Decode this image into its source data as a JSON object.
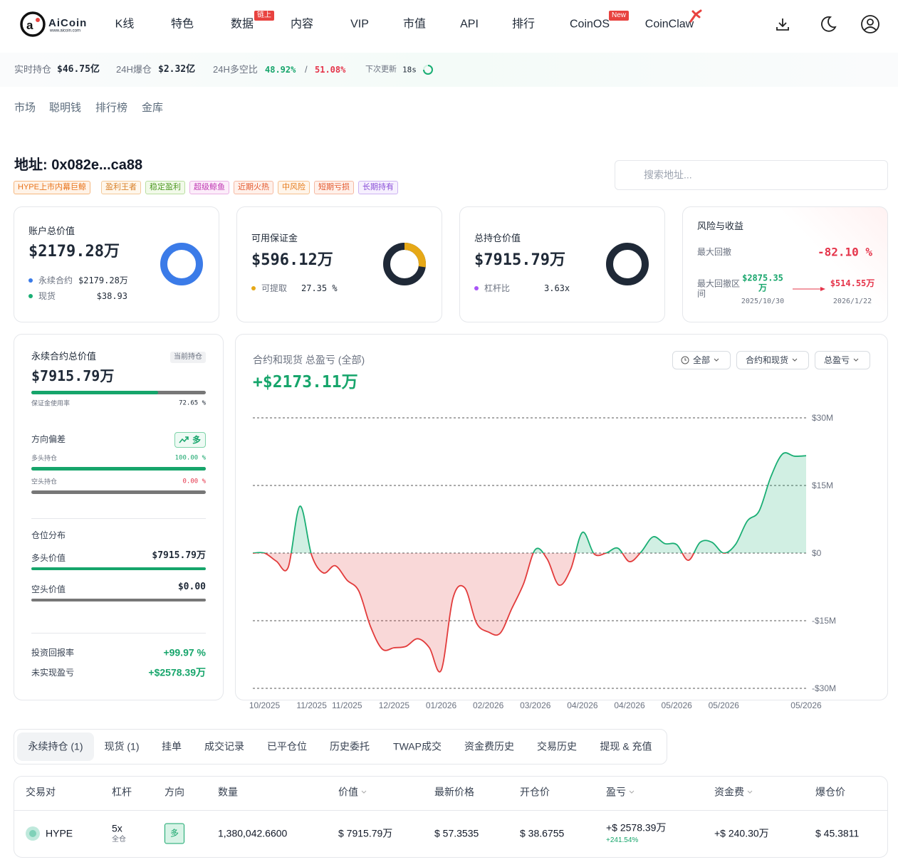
{
  "header": {
    "logo": "AiCoin",
    "logo_url": "www.aicoin.com",
    "nav": [
      {
        "label": "K线"
      },
      {
        "label": "特色"
      },
      {
        "label": "数据",
        "badge": "链上"
      },
      {
        "label": "内容"
      },
      {
        "label": "VIP"
      },
      {
        "label": "市值"
      },
      {
        "label": "API"
      },
      {
        "label": "排行"
      },
      {
        "label": "CoinOS",
        "badge": "New"
      },
      {
        "label": "CoinClaw"
      }
    ]
  },
  "stats": {
    "open_interest": {
      "label": "实时持仓",
      "value": "$46.75亿"
    },
    "liquidations": {
      "label": "24H爆仓",
      "value": "$2.32亿"
    },
    "long_short": {
      "label": "24H多空比",
      "long": "48.92%",
      "separator": "/",
      "short": "51.08%"
    },
    "next_update": {
      "label": "下次更新",
      "value": "18s"
    }
  },
  "subnav": [
    "市场",
    "聪明钱",
    "排行榜",
    "金库"
  ],
  "address": {
    "title": "地址: 0x082e...ca88",
    "tags": [
      "HYPE上市内幕巨鲸",
      "盈利王者",
      "稳定盈利",
      "超级鲸鱼",
      "近期火热",
      "中风险",
      "短期亏损",
      "长期持有"
    ],
    "search_placeholder": "搜索地址..."
  },
  "cards": [
    {
      "title": "账户总价值",
      "value": "$2179.28万",
      "items": [
        {
          "label": "永续合约",
          "value": "$2179.28万"
        },
        {
          "label": "现货",
          "value": "$38.93"
        }
      ]
    },
    {
      "title": "可用保证金",
      "value": "$596.12万",
      "items": [
        {
          "label": "可提取",
          "value": {
            "value": 27.35,
            "label": "27.35 %"
          }
        }
      ]
    },
    {
      "title": "总持仓价值",
      "value": "$7915.79万",
      "items": [
        {
          "label": "杠杆比",
          "value": "3.63x"
        }
      ]
    }
  ],
  "risk": {
    "title": "风险与收益",
    "max_drawdown": {
      "label": "最大回撤",
      "value": "-82.10 %"
    },
    "range": {
      "label": "最大回撤区间",
      "from": {
        "value": "$2875.35万",
        "date": "2025/10/30"
      },
      "to": {
        "value": "$514.55万",
        "date": "2026/1/22"
      }
    }
  },
  "left_panel": {
    "title": "永续合约总价值",
    "badge": "当前持仓",
    "value": "$7915.79万",
    "margin_usage": {
      "label": "保证金使用率",
      "pct": {
        "value": 72.65,
        "label": "72.65 %"
      }
    },
    "bias": {
      "title": "方向偏差",
      "badge": "多",
      "long": {
        "label": "多头持仓",
        "pct": {
          "value": 100,
          "label": "100.00 %"
        }
      },
      "short": {
        "label": "空头持仓",
        "pct": {
          "value": 0,
          "label": "0.00 %"
        }
      }
    },
    "distribution": {
      "title": "仓位分布",
      "long": {
        "label": "多头价值",
        "value": "$7915.79万"
      },
      "short": {
        "label": "空头价值",
        "value": "$0.00"
      }
    },
    "roi": {
      "label": "投资回报率",
      "value": "+99.97 %"
    },
    "upnl": {
      "label": "未实现盈亏",
      "value": "+$2578.39万"
    }
  },
  "chart_data": {
    "type": "area",
    "title": "合约和现货 总盈亏 (全部)",
    "headline": "+$2173.11万",
    "controls": [
      "全部",
      "合约和现货",
      "总盈亏"
    ],
    "color": "#1aae74",
    "negative_color": "#e23b3b",
    "categories": [
      null,
      "10/2025",
      null,
      null,
      null,
      "11/2025",
      null,
      null,
      "11/2025",
      null,
      null,
      null,
      "12/2025",
      null,
      null,
      null,
      "01/2026",
      null,
      null,
      null,
      "02/2026",
      null,
      null,
      null,
      "03/2026",
      null,
      null,
      null,
      "04/2026",
      null,
      null,
      null,
      "04/2026",
      null,
      null,
      null,
      "05/2026",
      null,
      null,
      null,
      "05/2026",
      null,
      null,
      null,
      null,
      null,
      null,
      "05/2026"
    ],
    "values": [
      0,
      0,
      -1800000,
      -3200000,
      10400000,
      -500000,
      -4400000,
      -2800000,
      -6000000,
      -8400000,
      -16300000,
      -21300000,
      -21000000,
      -20700000,
      -19000000,
      -21000000,
      -26000000,
      -10000000,
      -7700000,
      -15500000,
      -17500000,
      -17800000,
      -12300000,
      -6800000,
      800000,
      -1300000,
      -7100000,
      -3600000,
      4600000,
      -200000,
      0,
      1100000,
      -1900000,
      300000,
      3600000,
      2100000,
      1900000,
      -1600000,
      2400000,
      2400000,
      0,
      1900000,
      7100000,
      9300000,
      16900000,
      22000000,
      21500000,
      21600000
    ],
    "ylim": [
      -30000000,
      30000000
    ],
    "yticks": [
      {
        "value": 30000000,
        "label": "$30M"
      },
      {
        "value": 15000000,
        "label": "$15M"
      },
      {
        "value": 0,
        "label": "$0"
      },
      {
        "value": -15000000,
        "label": "-$15M"
      },
      {
        "value": -30000000,
        "label": "-$30M"
      }
    ],
    "grid": true
  },
  "tabs": [
    "永续持仓 (1)",
    "现货 (1)",
    "挂单",
    "成交记录",
    "已平仓位",
    "历史委托",
    "TWAP成交",
    "资金费历史",
    "交易历史",
    "提现 & 充值"
  ],
  "table": {
    "headers": [
      "交易对",
      "杠杆",
      "方向",
      "数量",
      "价值",
      "最新价格",
      "开仓价",
      "盈亏",
      "资金费",
      "爆仓价"
    ],
    "rows": [
      {
        "pair": "HYPE",
        "leverage": "5x",
        "margin_mode": "全仓",
        "side": "多",
        "size": "1,380,042.6600",
        "value": "$ 7915.79万",
        "mark_price": "$ 57.3535",
        "entry_price": "$ 38.6755",
        "pnl": "+$ 2578.39万",
        "pnl_pct": "+241.54%",
        "funding": "+$ 240.30万",
        "liq_price": "$ 45.3811"
      }
    ]
  }
}
